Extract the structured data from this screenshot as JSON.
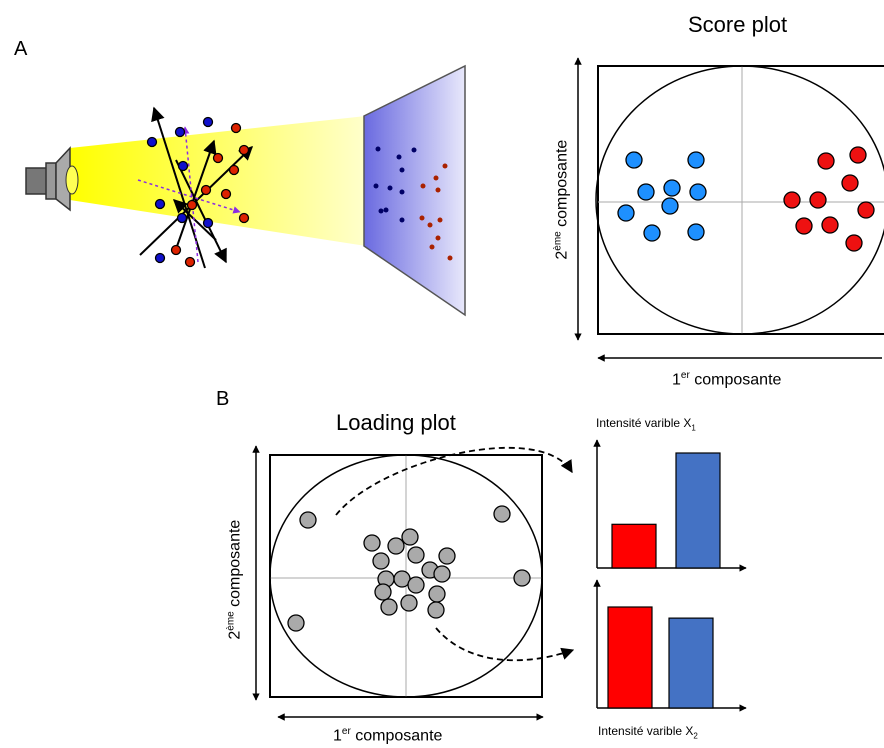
{
  "panel_a": {
    "letter": "A",
    "score_plot": {
      "title": "Score plot",
      "xlabel": {
        "number": "1",
        "sup": "er",
        "text": " composante"
      },
      "ylabel": {
        "number": "2",
        "sup": "ème",
        "text": " composante"
      },
      "groups": [
        {
          "name": "blue",
          "color": "#1e90ff",
          "count": 9
        },
        {
          "name": "red",
          "color": "#ee1111",
          "count": 9
        }
      ]
    },
    "illustration": {
      "lamp": "lamp-icon",
      "light_beam_color": "#ffff66",
      "screen_color": "#a9a9ee",
      "blue_points": 8,
      "red_points": 10
    }
  },
  "panel_b": {
    "letter": "B",
    "loading_plot": {
      "title": "Loading plot",
      "xlabel": {
        "number": "1",
        "sup": "er",
        "text": " composante"
      },
      "ylabel": {
        "number": "2",
        "sup": "ème",
        "text": " composante"
      },
      "point_color": "#aaaaaa",
      "point_count": 20
    },
    "bar_x1": {
      "label": {
        "text": "Intensité varible X",
        "sub": "1"
      },
      "values": [
        {
          "name": "red",
          "value": 0.38,
          "color": "#ff0000"
        },
        {
          "name": "blue",
          "value": 1.0,
          "color": "#4472c4"
        }
      ]
    },
    "bar_x2": {
      "label": {
        "text": "Intensité varible X",
        "sub": "2"
      },
      "values": [
        {
          "name": "red",
          "value": 1.0,
          "color": "#ff0000"
        },
        {
          "name": "blue",
          "value": 0.89,
          "color": "#4472c4"
        }
      ]
    }
  }
}
